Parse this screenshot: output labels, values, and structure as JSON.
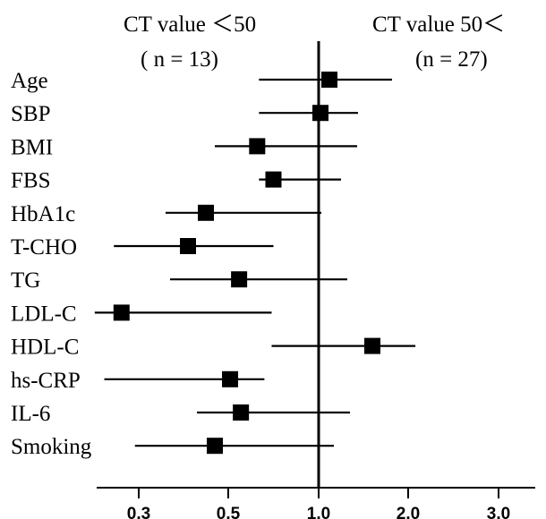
{
  "chart_data": {
    "type": "forest",
    "headers": {
      "left": {
        "line1": "CT value ＜50",
        "line2": "( n = 13)"
      },
      "right": {
        "line1": "CT value 50＜",
        "line2": "(n = 27)"
      }
    },
    "reference_value": 1.0,
    "x_ticks": [
      {
        "label": "0.3",
        "value": 0.3
      },
      {
        "label": "0.5",
        "value": 0.5
      },
      {
        "label": "1.0",
        "value": 1.0
      },
      {
        "label": "2.0",
        "value": 2.0
      },
      {
        "label": "3.0",
        "value": 3.0
      }
    ],
    "xlim": [
      0.08,
      3.45
    ],
    "rows": [
      {
        "label": "Age",
        "estimate": 1.12,
        "lower": 0.67,
        "upper": 1.82
      },
      {
        "label": "SBP",
        "estimate": 1.02,
        "lower": 0.67,
        "upper": 1.44
      },
      {
        "label": "BMI",
        "estimate": 0.66,
        "lower": 0.47,
        "upper": 1.43
      },
      {
        "label": "FBS",
        "estimate": 0.75,
        "lower": 0.67,
        "upper": 1.25
      },
      {
        "label": "HbA1c",
        "estimate": 0.45,
        "lower": 0.36,
        "upper": 1.03
      },
      {
        "label": "T-CHO",
        "estimate": 0.41,
        "lower": 0.17,
        "upper": 0.75
      },
      {
        "label": "TG",
        "estimate": 0.56,
        "lower": 0.37,
        "upper": 1.32
      },
      {
        "label": "LDL-C",
        "estimate": 0.21,
        "lower": 0.07,
        "upper": 0.74
      },
      {
        "label": "HDL-C",
        "estimate": 1.6,
        "lower": 0.74,
        "upper": 2.08
      },
      {
        "label": "hs-CRP",
        "estimate": 0.51,
        "lower": 0.12,
        "upper": 0.7
      },
      {
        "label": "IL-6",
        "estimate": 0.57,
        "lower": 0.43,
        "upper": 1.35
      },
      {
        "label": "Smoking",
        "estimate": 0.47,
        "lower": 0.28,
        "upper": 1.17
      }
    ]
  }
}
